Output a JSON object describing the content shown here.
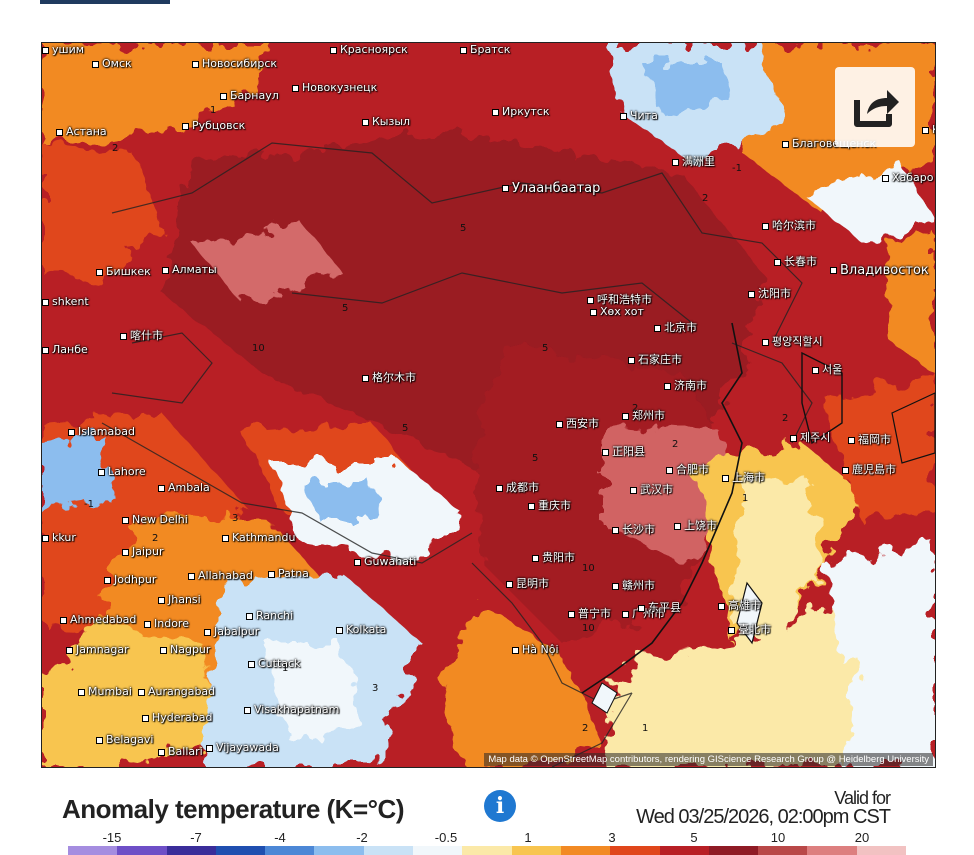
{
  "map": {
    "attribution": "Map data © OpenStreetMap contributors, rendering GIScience Research Group @ Heidelberg University",
    "share_icon": "share-arrow-icon",
    "places": [
      {
        "name": "Омск"
      },
      {
        "name": "Новосибирск"
      },
      {
        "name": "Красноярск"
      },
      {
        "name": "Братск"
      },
      {
        "name": "Барнаул"
      },
      {
        "name": "Новокузнецк"
      },
      {
        "name": "Рубцовск"
      },
      {
        "name": "Астана"
      },
      {
        "name": "Иркутск"
      },
      {
        "name": "Кызыл"
      },
      {
        "name": "Чита"
      },
      {
        "name": "Благовещенск"
      },
      {
        "name": "Хабаро"
      },
      {
        "name": "Улаанбаатар"
      },
      {
        "name": "满洲里"
      },
      {
        "name": "哈尔滨市"
      },
      {
        "name": "长春市"
      },
      {
        "name": "Владивосток"
      },
      {
        "name": "Бишкек"
      },
      {
        "name": "Алматы"
      },
      {
        "name": "shkent"
      },
      {
        "name": "喀什市"
      },
      {
        "name": "呼和浩特市"
      },
      {
        "name": "Хөх хот"
      },
      {
        "name": "沈阳市"
      },
      {
        "name": "北京市"
      },
      {
        "name": "평양직할시"
      },
      {
        "name": "서울"
      },
      {
        "name": "石家庄市"
      },
      {
        "name": "济南市"
      },
      {
        "name": "格尔木市"
      },
      {
        "name": "Islamabad"
      },
      {
        "name": "西安市"
      },
      {
        "name": "郑州市"
      },
      {
        "name": "제주시"
      },
      {
        "name": "福岡市"
      },
      {
        "name": "鹿児島市"
      },
      {
        "name": "Lahore"
      },
      {
        "name": "Ambala"
      },
      {
        "name": "正阳县"
      },
      {
        "name": "合肥市"
      },
      {
        "name": "上海市"
      },
      {
        "name": "武汉市"
      },
      {
        "name": "成都市"
      },
      {
        "name": "重庆市"
      },
      {
        "name": "New Delhi"
      },
      {
        "name": "Kathmandu"
      },
      {
        "name": "上饶市"
      },
      {
        "name": "长沙市"
      },
      {
        "name": "Jaipur"
      },
      {
        "name": "贵阳市"
      },
      {
        "name": "Guwahati"
      },
      {
        "name": "赣州市"
      },
      {
        "name": "Jodhpur"
      },
      {
        "name": "Allahabad"
      },
      {
        "name": "Patna"
      },
      {
        "name": "Jhansi"
      },
      {
        "name": "昆明市"
      },
      {
        "name": "臺北市"
      },
      {
        "name": "Ahmedabad"
      },
      {
        "name": "Indore"
      },
      {
        "name": "Ranchi"
      },
      {
        "name": "Jabalpur"
      },
      {
        "name": "普宁市"
      },
      {
        "name": "广州市"
      },
      {
        "name": "东平县"
      },
      {
        "name": "高雄市"
      },
      {
        "name": "Jamnagar"
      },
      {
        "name": "Nagpur"
      },
      {
        "name": "Kolkata"
      },
      {
        "name": "Hà Nội"
      },
      {
        "name": "Cuttack"
      },
      {
        "name": "Mumbai"
      },
      {
        "name": "Aurangabad"
      },
      {
        "name": "Hyderabad"
      },
      {
        "name": "Visakhapatnam"
      },
      {
        "name": "Belagavi"
      },
      {
        "name": "Ballari"
      },
      {
        "name": "Vijayawada"
      },
      {
        "name": "Комс"
      },
      {
        "name": "ушим"
      },
      {
        "name": "Ланбе"
      },
      {
        "name": "kkur"
      }
    ],
    "contour_labels": [
      "1",
      "2",
      "5",
      "10",
      "-1",
      "2",
      "1",
      "5",
      "10",
      "2",
      "5",
      "3",
      "-1",
      "2",
      "5",
      "10",
      "2",
      "1",
      "-1",
      "2",
      "5",
      "3",
      "2",
      "1"
    ]
  },
  "legend": {
    "title": "Anomaly temperature (K=°C)",
    "info_icon": "info-icon",
    "valid_label": "Valid for",
    "valid_date": "Wed 03/25/2026, 02:00pm CST",
    "ticks": [
      "-15",
      "-7",
      "-4",
      "-2",
      "-0.5",
      "1",
      "3",
      "5",
      "10",
      "20"
    ],
    "colors": [
      "#a58de0",
      "#6e4fc7",
      "#3a2d9a",
      "#1f4fb0",
      "#4c87d6",
      "#8cbdee",
      "#c9e2f6",
      "#f1f7fb",
      "#fbe9a8",
      "#f8c550",
      "#f28a24",
      "#e0461b",
      "#b81f25",
      "#8f1b25",
      "#b94848",
      "#dd7f7f",
      "#f2c2c2"
    ]
  }
}
